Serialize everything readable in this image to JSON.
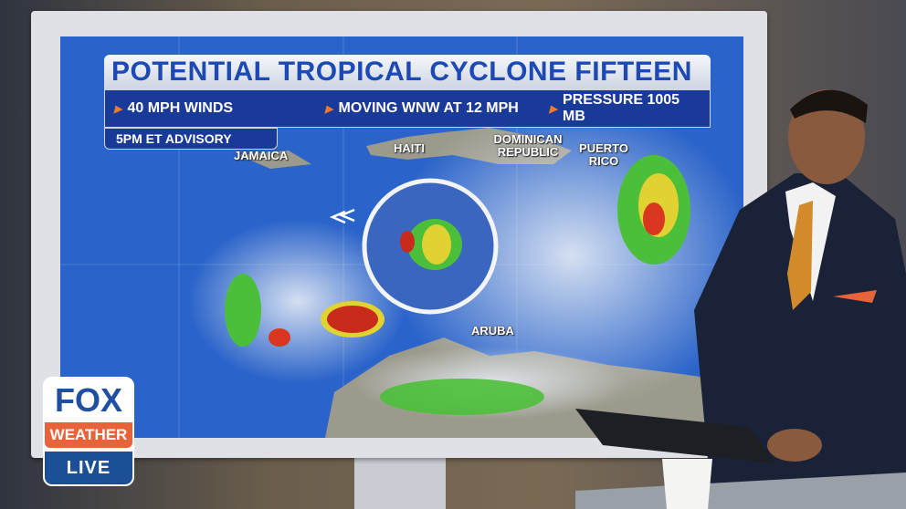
{
  "graphic": {
    "title": "POTENTIAL TROPICAL CYCLONE FIFTEEN",
    "facts": [
      "40 MPH WINDS",
      "MOVING WNW AT 12 MPH",
      "PRESSURE 1005 MB"
    ],
    "advisory": "5PM ET ADVISORY",
    "accent_color": "#f07a2c",
    "title_color": "#1d49b4"
  },
  "map_labels": {
    "jamaica": "JAMAICA",
    "haiti": "HAITI",
    "dominican_republic": "DOMINICAN REPUBLIC",
    "puerto_rico": "PUERTO RICO",
    "aruba": "ARUBA"
  },
  "logo": {
    "line1": "FOX",
    "line2": "WEATHER",
    "line3": "LIVE"
  }
}
